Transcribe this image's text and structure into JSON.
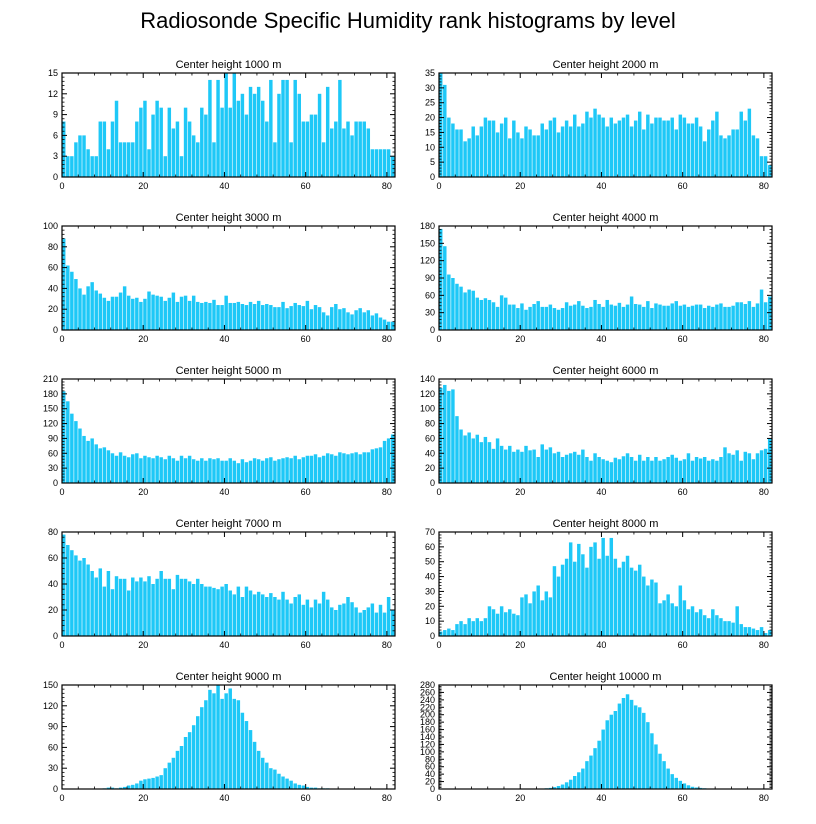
{
  "title": "Radiosonde Specific Humidity rank histograms by level",
  "colors": {
    "bar": "#1ec8f7",
    "axis": "#000000"
  },
  "chart_data": [
    {
      "type": "bar",
      "title": "Center height 1000 m",
      "xlabel": "",
      "ylabel": "",
      "xlim": [
        0,
        82
      ],
      "ylim": [
        0,
        15
      ],
      "xticks": [
        "0",
        "20",
        "40",
        "60",
        "80"
      ],
      "yticks": [
        "0",
        "3",
        "6",
        "9",
        "12",
        "15"
      ],
      "values": [
        8,
        3,
        3,
        5,
        6,
        6,
        4,
        3,
        3,
        8,
        8,
        4,
        8,
        11,
        5,
        5,
        5,
        5,
        8,
        10,
        11,
        4,
        9,
        11,
        10,
        3,
        10,
        7,
        8,
        3,
        10,
        8,
        6,
        5,
        10,
        9,
        14,
        5,
        14,
        10,
        15,
        10,
        15,
        11,
        12,
        9,
        13,
        12,
        13,
        11,
        8,
        14,
        5,
        12,
        14,
        14,
        5,
        14,
        12,
        8,
        8,
        9,
        9,
        12,
        5,
        13,
        7,
        8,
        14,
        7,
        8,
        6,
        8,
        8,
        8,
        7,
        4,
        4,
        4,
        4,
        4,
        3
      ]
    },
    {
      "type": "bar",
      "title": "Center height 2000 m",
      "xlabel": "",
      "ylabel": "",
      "xlim": [
        0,
        82
      ],
      "ylim": [
        0,
        35
      ],
      "xticks": [
        "0",
        "20",
        "40",
        "60",
        "80"
      ],
      "yticks": [
        "0",
        "5",
        "10",
        "15",
        "20",
        "25",
        "30",
        "35"
      ],
      "values": [
        35,
        31,
        20,
        18,
        16,
        16,
        12,
        13,
        17,
        14,
        17,
        20,
        19,
        19,
        15,
        18,
        20,
        13,
        19,
        15,
        13,
        17,
        16,
        14,
        14,
        18,
        16,
        19,
        20,
        15,
        17,
        19,
        17,
        21,
        17,
        18,
        22,
        20,
        23,
        21,
        20,
        17,
        20,
        18,
        19,
        20,
        21,
        17,
        19,
        22,
        16,
        21,
        18,
        20,
        20,
        19,
        19,
        20,
        16,
        21,
        20,
        18,
        18,
        20,
        17,
        12,
        16,
        19,
        22,
        14,
        13,
        14,
        16,
        16,
        22,
        19,
        23,
        14,
        13,
        7,
        7,
        4
      ]
    },
    {
      "type": "bar",
      "title": "Center height 3000 m",
      "xlabel": "",
      "ylabel": "",
      "xlim": [
        0,
        82
      ],
      "ylim": [
        0,
        100
      ],
      "xticks": [
        "0",
        "20",
        "40",
        "60",
        "80"
      ],
      "yticks": [
        "0",
        "20",
        "40",
        "60",
        "80",
        "100"
      ],
      "values": [
        88,
        62,
        56,
        49,
        40,
        34,
        42,
        46,
        38,
        35,
        31,
        28,
        32,
        32,
        36,
        42,
        33,
        30,
        31,
        27,
        30,
        37,
        34,
        33,
        32,
        28,
        31,
        36,
        27,
        32,
        33,
        28,
        33,
        27,
        26,
        27,
        26,
        29,
        24,
        24,
        33,
        26,
        26,
        27,
        25,
        24,
        27,
        25,
        28,
        24,
        25,
        24,
        22,
        22,
        27,
        21,
        23,
        26,
        24,
        23,
        28,
        20,
        24,
        22,
        17,
        14,
        22,
        25,
        20,
        21,
        17,
        15,
        19,
        21,
        17,
        19,
        14,
        16,
        12,
        10,
        8,
        8
      ]
    },
    {
      "type": "bar",
      "title": "Center height 4000 m",
      "xlabel": "",
      "ylabel": "",
      "xlim": [
        0,
        82
      ],
      "ylim": [
        0,
        180
      ],
      "xticks": [
        "0",
        "20",
        "40",
        "60",
        "80"
      ],
      "yticks": [
        "0",
        "30",
        "60",
        "90",
        "120",
        "150",
        "180"
      ],
      "values": [
        175,
        145,
        96,
        90,
        80,
        75,
        65,
        70,
        68,
        56,
        52,
        55,
        52,
        48,
        40,
        60,
        56,
        44,
        44,
        38,
        46,
        35,
        40,
        45,
        50,
        40,
        40,
        44,
        38,
        35,
        38,
        48,
        42,
        44,
        50,
        42,
        38,
        40,
        52,
        45,
        40,
        52,
        44,
        42,
        47,
        40,
        44,
        58,
        45,
        44,
        40,
        50,
        38,
        46,
        44,
        42,
        42,
        46,
        50,
        42,
        44,
        40,
        42,
        44,
        44,
        38,
        42,
        40,
        44,
        46,
        40,
        40,
        42,
        48,
        48,
        45,
        50,
        40,
        46,
        70,
        48,
        58
      ]
    },
    {
      "type": "bar",
      "title": "Center height 5000 m",
      "xlabel": "",
      "ylabel": "",
      "xlim": [
        0,
        82
      ],
      "ylim": [
        0,
        210
      ],
      "xticks": [
        "0",
        "20",
        "40",
        "60",
        "80"
      ],
      "yticks": [
        "0",
        "30",
        "60",
        "90",
        "120",
        "150",
        "180",
        "210"
      ],
      "values": [
        185,
        165,
        140,
        125,
        110,
        95,
        85,
        90,
        78,
        70,
        72,
        66,
        60,
        55,
        62,
        55,
        52,
        58,
        60,
        50,
        55,
        52,
        50,
        55,
        52,
        48,
        55,
        50,
        45,
        55,
        50,
        55,
        48,
        45,
        50,
        45,
        50,
        48,
        50,
        45,
        45,
        50,
        45,
        40,
        48,
        42,
        45,
        50,
        48,
        45,
        50,
        52,
        45,
        48,
        50,
        52,
        50,
        55,
        48,
        52,
        55,
        55,
        58,
        52,
        55,
        60,
        58,
        55,
        62,
        60,
        58,
        60,
        62,
        58,
        62,
        62,
        68,
        70,
        72,
        85,
        90,
        98
      ]
    },
    {
      "type": "bar",
      "title": "Center height 6000 m",
      "xlabel": "",
      "ylabel": "",
      "xlim": [
        0,
        82
      ],
      "ylim": [
        0,
        140
      ],
      "xticks": [
        "0",
        "20",
        "40",
        "60",
        "80"
      ],
      "yticks": [
        "0",
        "20",
        "40",
        "60",
        "80",
        "100",
        "120",
        "140"
      ],
      "values": [
        128,
        132,
        124,
        126,
        90,
        72,
        64,
        68,
        60,
        65,
        55,
        62,
        55,
        46,
        60,
        50,
        45,
        50,
        42,
        45,
        42,
        50,
        44,
        45,
        35,
        52,
        45,
        48,
        40,
        42,
        35,
        38,
        40,
        42,
        38,
        45,
        35,
        30,
        40,
        35,
        32,
        30,
        28,
        34,
        32,
        36,
        40,
        35,
        30,
        38,
        30,
        35,
        30,
        35,
        30,
        32,
        35,
        38,
        34,
        30,
        32,
        40,
        30,
        35,
        33,
        35,
        30,
        32,
        30,
        35,
        48,
        40,
        38,
        44,
        30,
        42,
        40,
        32,
        40,
        44,
        46,
        60
      ]
    },
    {
      "type": "bar",
      "title": "Center height 7000 m",
      "xlabel": "",
      "ylabel": "",
      "xlim": [
        0,
        82
      ],
      "ylim": [
        0,
        80
      ],
      "xticks": [
        "0",
        "20",
        "40",
        "60",
        "80"
      ],
      "yticks": [
        "0",
        "20",
        "40",
        "60",
        "80"
      ],
      "values": [
        78,
        70,
        66,
        62,
        58,
        60,
        55,
        50,
        45,
        52,
        38,
        50,
        36,
        46,
        44,
        44,
        35,
        45,
        42,
        45,
        42,
        46,
        40,
        44,
        50,
        44,
        44,
        36,
        47,
        44,
        44,
        42,
        40,
        44,
        40,
        38,
        38,
        37,
        36,
        38,
        40,
        35,
        32,
        38,
        30,
        38,
        35,
        32,
        34,
        32,
        30,
        33,
        30,
        28,
        34,
        28,
        25,
        30,
        32,
        24,
        28,
        22,
        28,
        25,
        34,
        28,
        22,
        20,
        24,
        25,
        30,
        26,
        22,
        18,
        20,
        22,
        25,
        18,
        24,
        18,
        30,
        20
      ]
    },
    {
      "type": "bar",
      "title": "Center height 8000 m",
      "xlabel": "",
      "ylabel": "",
      "xlim": [
        0,
        82
      ],
      "ylim": [
        0,
        70
      ],
      "xticks": [
        "0",
        "20",
        "40",
        "60",
        "80"
      ],
      "yticks": [
        "0",
        "10",
        "20",
        "30",
        "40",
        "50",
        "60",
        "70"
      ],
      "values": [
        3,
        4,
        5,
        4,
        8,
        10,
        8,
        12,
        10,
        12,
        10,
        12,
        20,
        18,
        15,
        20,
        16,
        18,
        15,
        14,
        26,
        28,
        22,
        30,
        34,
        24,
        30,
        26,
        47,
        40,
        48,
        52,
        63,
        50,
        62,
        55,
        46,
        60,
        63,
        52,
        66,
        54,
        66,
        52,
        46,
        50,
        54,
        46,
        44,
        48,
        40,
        34,
        38,
        36,
        22,
        24,
        28,
        22,
        20,
        34,
        24,
        18,
        20,
        16,
        18,
        14,
        12,
        18,
        14,
        12,
        10,
        10,
        9,
        20,
        8,
        6,
        6,
        5,
        4,
        6,
        2,
        4
      ]
    },
    {
      "type": "bar",
      "title": "Center height 9000 m",
      "xlabel": "",
      "ylabel": "",
      "xlim": [
        0,
        82
      ],
      "ylim": [
        0,
        150
      ],
      "xticks": [
        "0",
        "20",
        "40",
        "60",
        "80"
      ],
      "yticks": [
        "0",
        "30",
        "60",
        "90",
        "120",
        "150"
      ],
      "values": [
        0,
        0,
        0,
        0,
        0,
        0,
        0,
        0,
        0,
        0,
        1,
        2,
        2,
        1,
        2,
        3,
        5,
        6,
        8,
        12,
        14,
        15,
        16,
        18,
        20,
        30,
        38,
        45,
        55,
        62,
        75,
        82,
        92,
        105,
        118,
        128,
        143,
        138,
        150,
        130,
        138,
        145,
        130,
        128,
        110,
        98,
        85,
        68,
        55,
        45,
        38,
        30,
        28,
        22,
        18,
        15,
        12,
        8,
        6,
        5,
        3,
        2,
        2,
        1,
        1,
        1,
        0,
        0,
        0,
        0,
        0,
        0,
        0,
        0,
        0,
        0,
        0,
        0,
        0,
        0,
        0,
        0
      ]
    },
    {
      "type": "bar",
      "title": "Center height 10000 m",
      "xlabel": "",
      "ylabel": "",
      "xlim": [
        0,
        82
      ],
      "ylim": [
        0,
        280
      ],
      "xticks": [
        "0",
        "20",
        "40",
        "60",
        "80"
      ],
      "yticks": [
        "0",
        "20",
        "40",
        "60",
        "80",
        "100",
        "120",
        "140",
        "160",
        "180",
        "200",
        "220",
        "240",
        "260",
        "280"
      ],
      "values": [
        0,
        0,
        0,
        0,
        0,
        0,
        0,
        0,
        0,
        0,
        0,
        0,
        0,
        0,
        0,
        0,
        0,
        0,
        0,
        0,
        0,
        0,
        0,
        0,
        0,
        1,
        2,
        3,
        5,
        8,
        12,
        18,
        25,
        35,
        45,
        55,
        75,
        90,
        110,
        130,
        160,
        185,
        200,
        210,
        230,
        245,
        255,
        240,
        225,
        220,
        205,
        180,
        150,
        120,
        95,
        75,
        55,
        40,
        30,
        22,
        15,
        10,
        6,
        4,
        3,
        2,
        1,
        1,
        0,
        0,
        0,
        0,
        0,
        0,
        0,
        0,
        0,
        0,
        0,
        0,
        0,
        0
      ]
    }
  ]
}
